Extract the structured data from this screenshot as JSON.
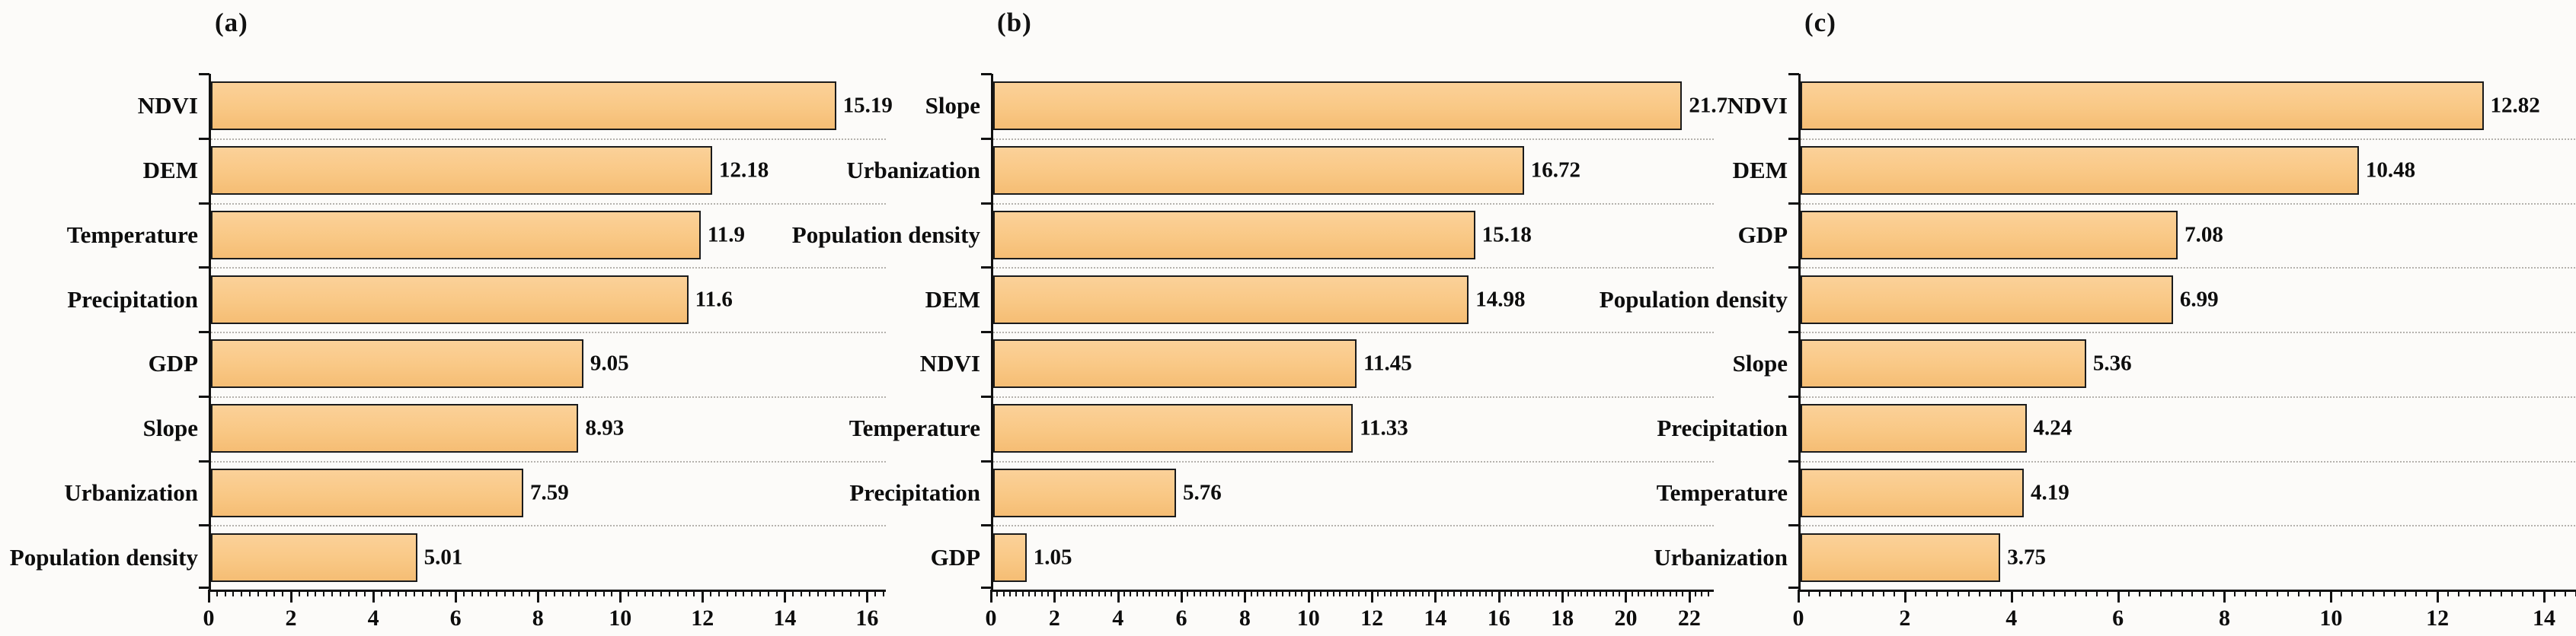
{
  "figure": {
    "background": "#fcfbf9",
    "bar_fill": "#f9c885",
    "bar_border": "#1b1b1b",
    "axis_color": "#111111",
    "gridline_color": "#b5b2ad",
    "text_color": "#0d0d0d"
  },
  "chart_data": [
    {
      "type": "bar",
      "orientation": "horizontal",
      "title": "(a)",
      "categories": [
        "NDVI",
        "DEM",
        "Temperature",
        "Precipitation",
        "GDP",
        "Slope",
        "Urbanization",
        "Population density"
      ],
      "values": [
        15.19,
        12.18,
        11.9,
        11.6,
        9.05,
        8.93,
        7.59,
        5.01
      ],
      "value_labels": [
        "15.19",
        "12.18",
        "11.9",
        "11.6",
        "9.05",
        "8.93",
        "7.59",
        "5.01"
      ],
      "xlim": [
        0,
        16.4
      ],
      "xticks": [
        0,
        2,
        4,
        6,
        8,
        10,
        12,
        14,
        16
      ],
      "minor_tick_step": 0.2,
      "grid": "dotted-horizontal-between-rows",
      "legend": "none",
      "xlabel": "",
      "ylabel": ""
    },
    {
      "type": "bar",
      "orientation": "horizontal",
      "title": "(b)",
      "categories": [
        "Slope",
        "Urbanization",
        "Population density",
        "DEM",
        "NDVI",
        "Temperature",
        "Precipitation",
        "GDP"
      ],
      "values": [
        21.7,
        16.72,
        15.18,
        14.98,
        11.45,
        11.33,
        5.76,
        1.05
      ],
      "value_labels": [
        "21.7",
        "16.72",
        "15.18",
        "14.98",
        "11.45",
        "11.33",
        "5.76",
        "1.05"
      ],
      "xlim": [
        0,
        22.7
      ],
      "xticks": [
        0,
        2,
        4,
        6,
        8,
        10,
        12,
        14,
        16,
        18,
        20,
        22
      ],
      "minor_tick_step": 0.2,
      "grid": "dotted-horizontal-between-rows",
      "legend": "none",
      "xlabel": "",
      "ylabel": ""
    },
    {
      "type": "bar",
      "orientation": "horizontal",
      "title": "(c)",
      "categories": [
        "NDVI",
        "DEM",
        "GDP",
        "Population density",
        "Slope",
        "Precipitation",
        "Temperature",
        "Urbanization"
      ],
      "values": [
        12.82,
        10.48,
        7.08,
        6.99,
        5.36,
        4.24,
        4.19,
        3.75
      ],
      "value_labels": [
        "12.82",
        "10.48",
        "7.08",
        "6.99",
        "5.36",
        "4.24",
        "4.19",
        "3.75"
      ],
      "xlim": [
        0,
        14.6
      ],
      "xticks": [
        0,
        2,
        4,
        6,
        8,
        10,
        12,
        14
      ],
      "minor_tick_step": 0.2,
      "grid": "dotted-horizontal-between-rows",
      "legend": "none",
      "xlabel": "",
      "ylabel": ""
    }
  ]
}
